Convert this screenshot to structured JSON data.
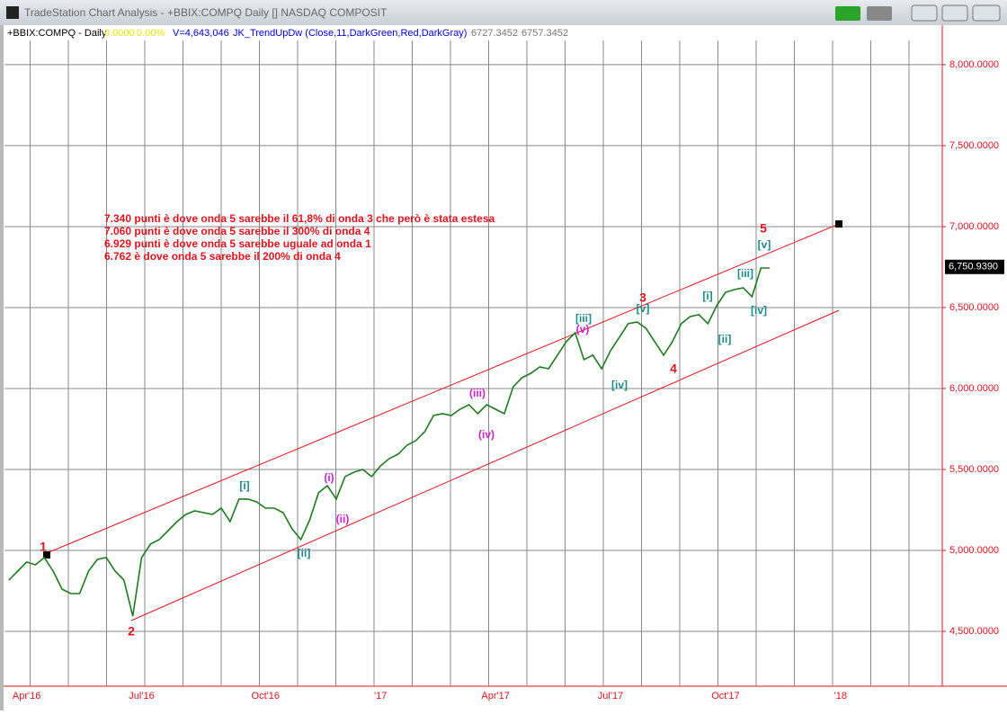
{
  "window_title": "TradeStation Chart Analysis - +BBIX:COMPQ Daily [] NASDAQ COMPOSIT",
  "chart_data": {
    "type": "line",
    "symbol": "+BBIX:COMPQ - Daily",
    "change": "0.0000",
    "change_pct": "0.00%",
    "volume": "V=4,643,046",
    "indicator": "JK_TrendUpDw (Close,11,DarkGreen,Red,DarkGray)",
    "indicator_values": [
      "6727.3452",
      "6757.3452"
    ],
    "categories": [
      null,
      null,
      "Apr'16",
      null,
      null,
      null,
      null,
      null,
      null,
      null,
      null,
      null,
      null,
      null,
      null,
      "Jul'16",
      null,
      null,
      null,
      null,
      null,
      null,
      null,
      null,
      null,
      null,
      null,
      null,
      null,
      "Oct'16",
      null,
      null,
      null,
      null,
      null,
      null,
      null,
      null,
      null,
      null,
      null,
      null,
      "'17",
      null,
      null,
      null,
      null,
      null,
      null,
      null,
      null,
      null,
      null,
      null,
      null,
      "Apr'17",
      null,
      null,
      null,
      null,
      null,
      null,
      null,
      null,
      null,
      null,
      null,
      null,
      "Jul'17",
      null,
      null,
      null,
      null,
      null,
      null,
      null,
      null,
      null,
      null,
      null,
      null,
      "Oct'17",
      null,
      null,
      null,
      null,
      null,
      null,
      null,
      null,
      null,
      null,
      null,
      null,
      "'18",
      null,
      null,
      null,
      null,
      null,
      null,
      null,
      null,
      null,
      null,
      null
    ],
    "series": [
      {
        "name": "+BBIX:COMPQ",
        "color": "#1f7a1f",
        "values": [
          4817,
          4872,
          4928,
          4911,
          4956,
          4872,
          4761,
          4733,
          4733,
          4872,
          4944,
          4956,
          4872,
          4817,
          4594,
          4956,
          5039,
          5067,
          5122,
          5178,
          5222,
          5244,
          5233,
          5222,
          5261,
          5178,
          5317,
          5317,
          5300,
          5261,
          5261,
          5233,
          5133,
          5067,
          5189,
          5356,
          5400,
          5317,
          5456,
          5483,
          5500,
          5456,
          5522,
          5567,
          5594,
          5650,
          5678,
          5733,
          5833,
          5844,
          5833,
          5872,
          5900,
          5844,
          5900,
          5872,
          5844,
          6011,
          6067,
          6094,
          6133,
          6122,
          6206,
          6289,
          6344,
          6178,
          6206,
          6122,
          6233,
          6317,
          6400,
          6411,
          6372,
          6289,
          6206,
          6289,
          6400,
          6444,
          6456,
          6400,
          6511,
          6594,
          6611,
          6622,
          6567,
          6744,
          6744,
          null,
          null,
          null,
          null,
          null,
          null,
          null,
          null,
          null,
          null,
          null,
          null,
          null,
          null,
          null,
          null,
          null,
          null,
          null
        ]
      }
    ],
    "last_price": {
      "value": 6750.939,
      "label": "6,750.9390"
    },
    "ylim": [
      4161,
      8244
    ],
    "yticks": [
      {
        "value": 4500,
        "label": "4,500.0000"
      },
      {
        "value": 5000,
        "label": "5,000.0000"
      },
      {
        "value": 5500,
        "label": "5,500.0000"
      },
      {
        "value": 6000,
        "label": "6,000.0000"
      },
      {
        "value": 6500,
        "label": "6,500.0000"
      },
      {
        "value": 7000,
        "label": "7,000.0000"
      },
      {
        "value": 7500,
        "label": "7,500.0000"
      },
      {
        "value": 8000,
        "label": "8,000.0000"
      }
    ],
    "grid": true,
    "annotations": [
      "7.340 punti è dove onda 5 sarebbe il 61,8% di onda 3 che però è stata estesa",
      "7.060 punti è dove onda 5 sarebbe il 300% di onda 4",
      "6.929 punti è dove onda 5 sarebbe uguale ad onda 1",
      "6.762 è dove onda 5 sarebbe il 200% di onda 4"
    ],
    "annotation_color": "#e0141e",
    "wave_labels": [
      {
        "text": "1",
        "color": "#e0141e"
      },
      {
        "text": "2",
        "color": "#e0141e"
      },
      {
        "text": "[i]",
        "color": "#1a8a8a"
      },
      {
        "text": "[ii]",
        "color": "#1a8a8a"
      },
      {
        "text": "(i)",
        "color": "#d020d0"
      },
      {
        "text": "(ii)",
        "color": "#d020d0"
      },
      {
        "text": "(iii)",
        "color": "#d020d0"
      },
      {
        "text": "(iv)",
        "color": "#d020d0"
      },
      {
        "text": "[iii]",
        "color": "#1a8a8a"
      },
      {
        "text": "(v)",
        "color": "#d020d0"
      },
      {
        "text": "3",
        "color": "#e0141e"
      },
      {
        "text": "[v]",
        "color": "#1a8a8a"
      },
      {
        "text": "[iv]",
        "color": "#1a8a8a"
      },
      {
        "text": "4",
        "color": "#e0141e"
      },
      {
        "text": "[i]",
        "color": "#1a8a8a"
      },
      {
        "text": "[ii]",
        "color": "#1a8a8a"
      },
      {
        "text": "[iii]",
        "color": "#1a8a8a"
      },
      {
        "text": "[iv]",
        "color": "#1a8a8a"
      },
      {
        "text": "[v]",
        "color": "#1a8a8a"
      },
      {
        "text": "5",
        "color": "#e0141e"
      }
    ]
  }
}
